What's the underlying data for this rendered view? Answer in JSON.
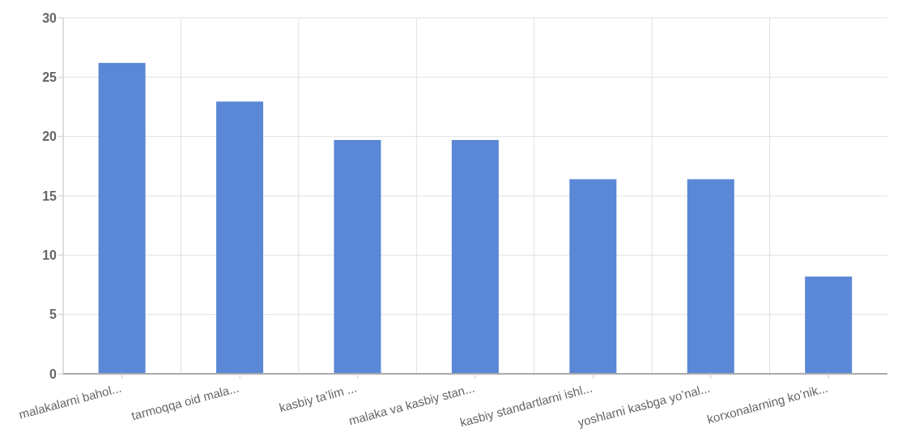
{
  "chart_data": {
    "type": "bar",
    "categories": [
      "malakalarni bahol...",
      "tarmoqqa oid mala...",
      "kasbiy ta’lim ...",
      "malaka va kasbiy stan...",
      "kasbiy standartlarni ishl...",
      "yoshlarni kasbga yo’nal...",
      "korxonalarning ko’nik..."
    ],
    "values": [
      26.2,
      22.95,
      19.7,
      19.7,
      16.4,
      16.4,
      8.2
    ],
    "color": "#5a87d6",
    "ylim": [
      0,
      30
    ],
    "yticks": [
      0,
      5,
      10,
      15,
      20,
      25,
      30
    ],
    "grid": true
  }
}
